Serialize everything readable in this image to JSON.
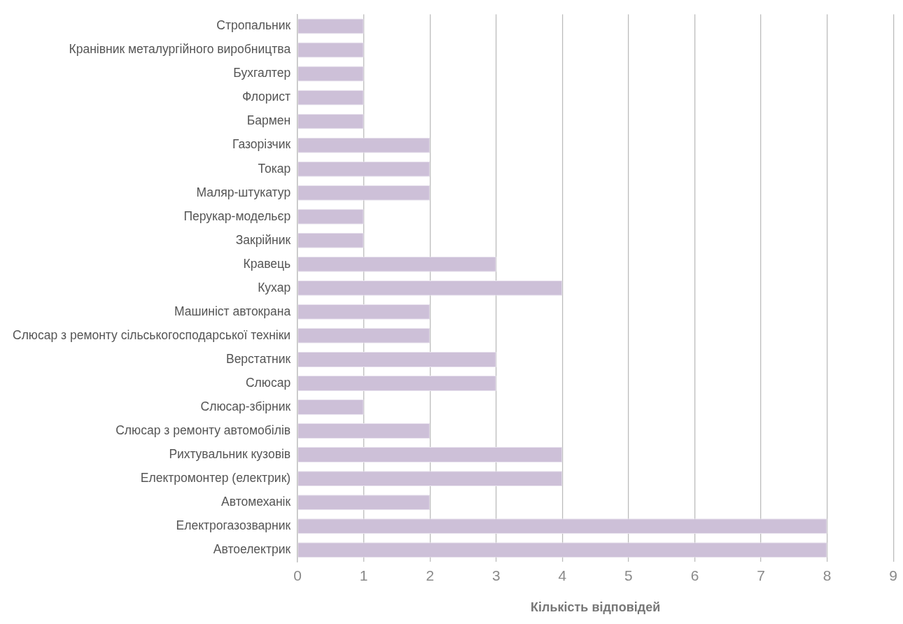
{
  "chart_data": {
    "type": "bar",
    "orientation": "horizontal",
    "xlabel": "Кількість відповідей",
    "categories": [
      "Стропальник",
      "Кранівник металургійного виробництва",
      "Бухгалтер",
      "Флорист",
      "Бармен",
      "Газорізчик",
      "Токар",
      "Маляр-штукатур",
      "Перукар-модельєр",
      "Закрійник",
      "Кравець",
      "Кухар",
      "Машиніст автокрана",
      "Слюсар з ремонту сільськогосподарської техніки",
      "Верстатник",
      "Слюсар",
      "Слюсар-збірник",
      "Слюсар з ремонту автомобілів",
      "Рихтувальник кузовів",
      "Електромонтер (електрик)",
      "Автомеханік",
      "Електрогазозварник",
      "Автоелектрик"
    ],
    "values": [
      1,
      1,
      1,
      1,
      1,
      2,
      2,
      2,
      1,
      1,
      3,
      4,
      2,
      2,
      3,
      3,
      1,
      2,
      4,
      4,
      2,
      8,
      8
    ],
    "color": "#cdc0d8",
    "xlim": [
      0,
      9
    ],
    "xticks": [
      0,
      1,
      2,
      3,
      4,
      5,
      6,
      7,
      8,
      9
    ],
    "grid": "x"
  }
}
